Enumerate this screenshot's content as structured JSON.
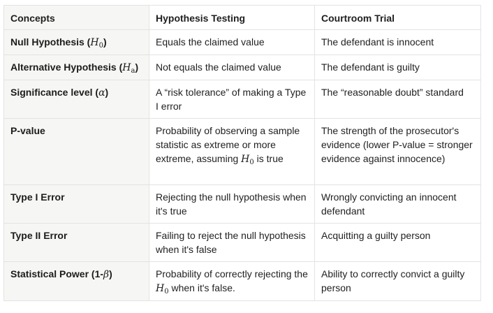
{
  "table": {
    "headers": [
      "Concepts",
      "Hypothesis Testing",
      "Courtroom Trial"
    ],
    "rows": [
      {
        "concept_text": "Null Hypothesis (",
        "concept_math": "H",
        "concept_sub": "0",
        "concept_tail": ")",
        "testing": "Equals the claimed value",
        "courtroom": "The defendant is innocent"
      },
      {
        "concept_text": "Alternative Hypothesis (",
        "concept_math": "H",
        "concept_sub": "a",
        "concept_tail": ")",
        "testing": "Not equals the claimed value",
        "courtroom": "The defendant is guilty"
      },
      {
        "concept_text": "Significance level (",
        "concept_math": "α",
        "concept_tail": ")",
        "testing": "A “risk tolerance” of making a Type I error",
        "courtroom": "The “reasonable doubt” standard"
      },
      {
        "concept": "P-value",
        "testing_pre": "Probability of observing a sample statistic as extreme or more extreme, assuming ",
        "testing_math": "H",
        "testing_sub": "0",
        "testing_post": " is true",
        "courtroom": "The strength of the prosecutor's evidence (lower P-value = stronger evidence against innocence)"
      },
      {
        "concept": "Type I Error",
        "testing": "Rejecting the null hypothesis when it's true",
        "courtroom": "Wrongly convicting an innocent defendant"
      },
      {
        "concept": "Type II Error",
        "testing": "Failing to reject the null hypothesis when it's false",
        "courtroom": "Acquitting a guilty person"
      },
      {
        "concept_text": "Statistical Power (1-",
        "concept_math": "β",
        "concept_tail": ")",
        "testing_pre": "Probability of correctly rejecting the ",
        "testing_math": "H",
        "testing_sub": "0",
        "testing_post": " when it's false.",
        "courtroom": "Ability to correctly convict a guilty person"
      }
    ]
  }
}
